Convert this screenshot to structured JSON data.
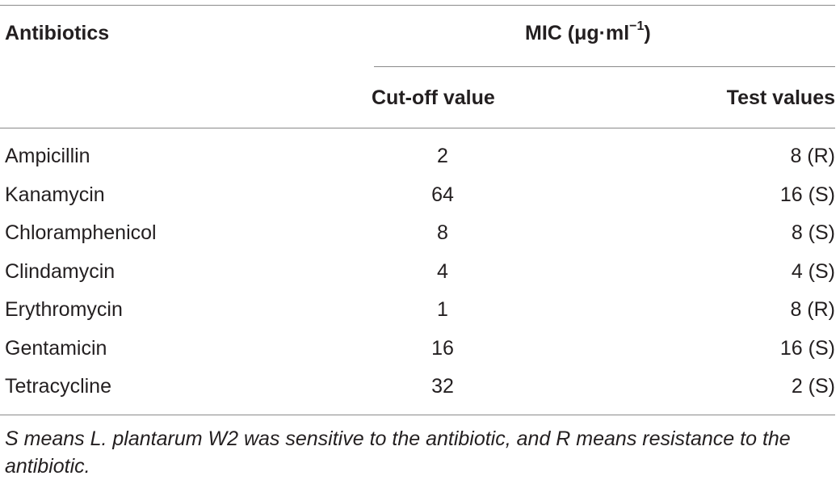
{
  "table": {
    "header": {
      "antibiotics": "Antibiotics",
      "mic_prefix": "MIC (μg·ml",
      "mic_exponent": "−1",
      "mic_suffix": ")",
      "cutoff": "Cut-off value",
      "test": "Test values"
    },
    "rows": [
      {
        "name": "Ampicillin",
        "cutoff": "2",
        "test": "8 (R)"
      },
      {
        "name": "Kanamycin",
        "cutoff": "64",
        "test": "16 (S)"
      },
      {
        "name": "Chloramphenicol",
        "cutoff": "8",
        "test": "8 (S)"
      },
      {
        "name": "Clindamycin",
        "cutoff": "4",
        "test": "4 (S)"
      },
      {
        "name": "Erythromycin",
        "cutoff": "1",
        "test": "8 (R)"
      },
      {
        "name": "Gentamicin",
        "cutoff": "16",
        "test": "16 (S)"
      },
      {
        "name": "Tetracycline",
        "cutoff": "32",
        "test": "2 (S)"
      }
    ],
    "footnote": "S means L. plantarum W2 was sensitive to the antibiotic, and R means resistance to the antibiotic."
  }
}
